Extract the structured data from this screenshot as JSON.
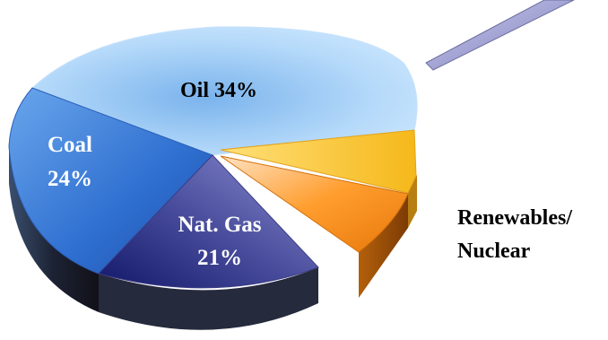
{
  "chart_data": {
    "type": "pie",
    "style": "3d-exploded-pie",
    "slices": [
      {
        "label": "Oil",
        "value": 34,
        "display": "Oil 34%",
        "color": "#a9d2f6"
      },
      {
        "label": "Coal",
        "value": 24,
        "display_lines": [
          "Coal",
          "24%"
        ],
        "color": "#2f6fd0"
      },
      {
        "label": "Nat. Gas",
        "value": 21,
        "display_lines": [
          "Nat. Gas",
          "21%"
        ],
        "color": "#4a4c9c"
      },
      {
        "label": "Renewables/ Nuclear",
        "value": 21,
        "display_lines": [
          "Renewables/",
          "Nuclear"
        ],
        "color": "#f6a020"
      }
    ],
    "title": "",
    "legend": "none",
    "callout": "pointer line from upper-right toward the chart"
  }
}
